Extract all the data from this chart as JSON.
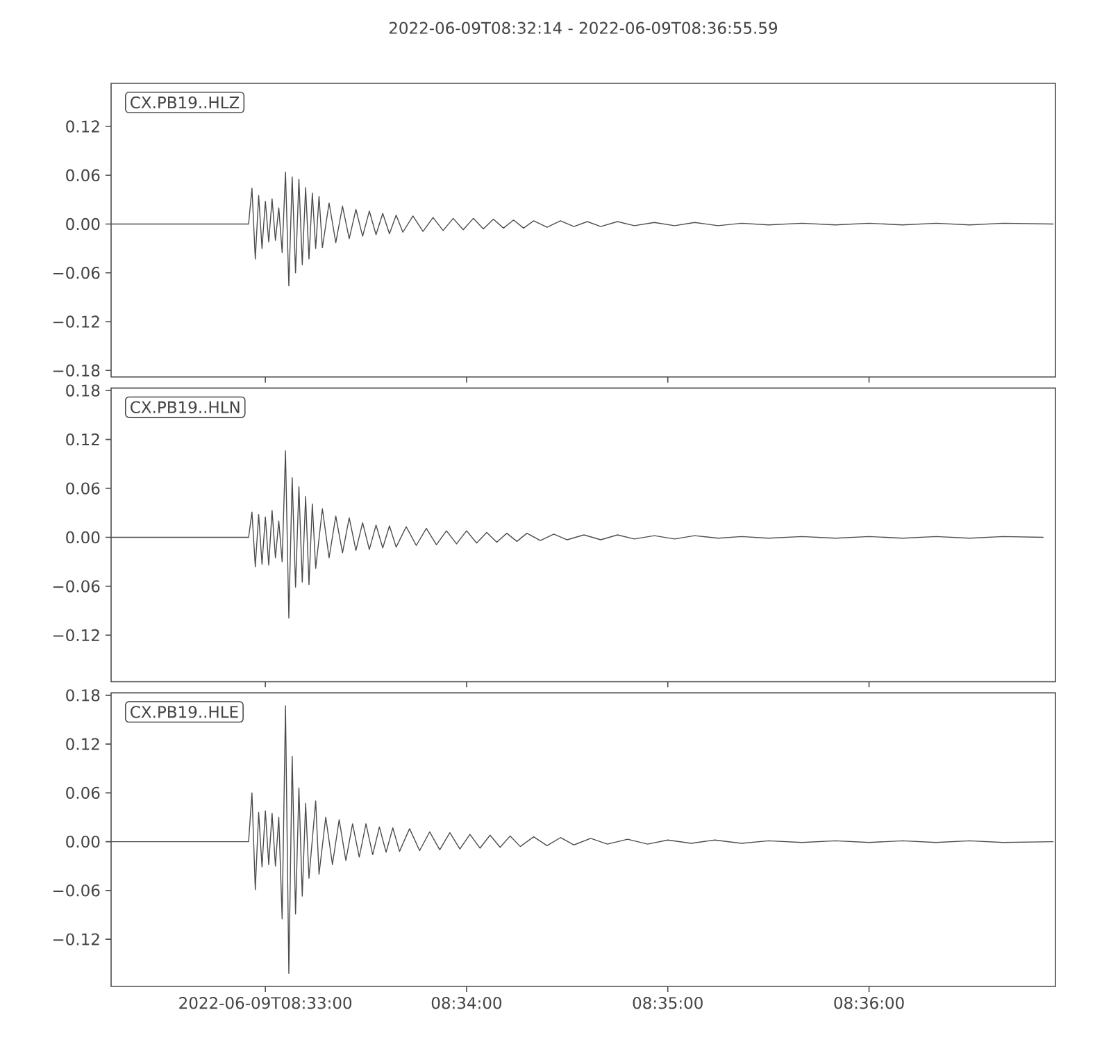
{
  "chart_data": [
    {
      "type": "line",
      "title": "2022-06-09T08:32:14  -  2022-06-09T08:36:55.59",
      "annotations": [
        "CX.PB19..HLZ"
      ],
      "color": "#4c4c4c",
      "x": [
        "2022-06-09T08:32:14",
        "2022-06-09T08:32:55",
        "2022-06-09T08:32:56",
        "2022-06-09T08:32:57",
        "2022-06-09T08:32:58",
        "2022-06-09T08:32:59",
        "2022-06-09T08:33:00",
        "2022-06-09T08:33:01",
        "2022-06-09T08:33:02",
        "2022-06-09T08:33:03",
        "2022-06-09T08:33:04",
        "2022-06-09T08:33:05",
        "2022-06-09T08:33:06",
        "2022-06-09T08:33:07",
        "2022-06-09T08:33:08",
        "2022-06-09T08:33:09",
        "2022-06-09T08:33:10",
        "2022-06-09T08:33:11",
        "2022-06-09T08:33:12",
        "2022-06-09T08:33:13",
        "2022-06-09T08:33:14",
        "2022-06-09T08:33:15",
        "2022-06-09T08:33:16",
        "2022-06-09T08:33:17",
        "2022-06-09T08:33:19",
        "2022-06-09T08:33:21",
        "2022-06-09T08:33:23",
        "2022-06-09T08:33:25",
        "2022-06-09T08:33:27",
        "2022-06-09T08:33:29",
        "2022-06-09T08:33:31",
        "2022-06-09T08:33:33",
        "2022-06-09T08:33:35",
        "2022-06-09T08:33:37",
        "2022-06-09T08:33:39",
        "2022-06-09T08:33:41",
        "2022-06-09T08:33:44",
        "2022-06-09T08:33:47",
        "2022-06-09T08:33:50",
        "2022-06-09T08:33:53",
        "2022-06-09T08:33:56",
        "2022-06-09T08:33:59",
        "2022-06-09T08:34:02",
        "2022-06-09T08:34:05",
        "2022-06-09T08:34:08",
        "2022-06-09T08:34:11",
        "2022-06-09T08:34:14",
        "2022-06-09T08:34:17",
        "2022-06-09T08:34:20",
        "2022-06-09T08:34:24",
        "2022-06-09T08:34:28",
        "2022-06-09T08:34:32",
        "2022-06-09T08:34:36",
        "2022-06-09T08:34:40",
        "2022-06-09T08:34:45",
        "2022-06-09T08:34:50",
        "2022-06-09T08:34:56",
        "2022-06-09T08:35:02",
        "2022-06-09T08:35:08",
        "2022-06-09T08:35:15",
        "2022-06-09T08:35:22",
        "2022-06-09T08:35:30",
        "2022-06-09T08:35:40",
        "2022-06-09T08:35:50",
        "2022-06-09T08:36:00",
        "2022-06-09T08:36:10",
        "2022-06-09T08:36:20",
        "2022-06-09T08:36:30",
        "2022-06-09T08:36:40",
        "2022-06-09T08:36:55"
      ],
      "values": [
        0,
        0,
        0.044,
        -0.043,
        0.035,
        -0.03,
        0.028,
        -0.022,
        0.031,
        -0.02,
        0.02,
        -0.035,
        0.064,
        -0.076,
        0.058,
        -0.06,
        0.055,
        -0.05,
        0.045,
        -0.043,
        0.038,
        -0.03,
        0.034,
        -0.029,
        0.026,
        -0.023,
        0.022,
        -0.018,
        0.018,
        -0.015,
        0.016,
        -0.013,
        0.013,
        -0.012,
        0.011,
        -0.01,
        0.01,
        -0.009,
        0.008,
        -0.008,
        0.007,
        -0.007,
        0.007,
        -0.006,
        0.006,
        -0.005,
        0.005,
        -0.005,
        0.004,
        -0.004,
        0.004,
        -0.003,
        0.003,
        -0.003,
        0.003,
        -0.002,
        0.002,
        -0.002,
        0.002,
        -0.002,
        0.001,
        -0.001,
        0.001,
        -0.001,
        0.001,
        -0.001,
        0.001,
        -0.001,
        0.001,
        0
      ],
      "xlim": [
        "2022-06-09T08:32:14",
        "2022-06-09T08:36:55.59"
      ],
      "xticks": [
        {
          "value": "2022-06-09T08:33:00",
          "label": null
        },
        {
          "value": "2022-06-09T08:34:00",
          "label": null
        },
        {
          "value": "2022-06-09T08:35:00",
          "label": null
        },
        {
          "value": "2022-06-09T08:36:00",
          "label": null
        }
      ],
      "ylim": [
        -0.188,
        0.173
      ],
      "yticks": [
        {
          "value": -0.18,
          "label": "−0.18"
        },
        {
          "value": -0.12,
          "label": "−0.12"
        },
        {
          "value": -0.06,
          "label": "−0.06"
        },
        {
          "value": 0,
          "label": "0.00"
        },
        {
          "value": 0.06,
          "label": "0.06"
        },
        {
          "value": 0.12,
          "label": "0.12"
        }
      ],
      "tick_labels": "y"
    },
    {
      "type": "line",
      "annotations": [
        "CX.PB19..HLN"
      ],
      "color": "#4c4c4c",
      "x": [
        "2022-06-09T08:32:14",
        "2022-06-09T08:32:55",
        "2022-06-09T08:32:56",
        "2022-06-09T08:32:57",
        "2022-06-09T08:32:58",
        "2022-06-09T08:32:59",
        "2022-06-09T08:33:00",
        "2022-06-09T08:33:01",
        "2022-06-09T08:33:02",
        "2022-06-09T08:33:03",
        "2022-06-09T08:33:04",
        "2022-06-09T08:33:05",
        "2022-06-09T08:33:06",
        "2022-06-09T08:33:07",
        "2022-06-09T08:33:08",
        "2022-06-09T08:33:09",
        "2022-06-09T08:33:10",
        "2022-06-09T08:33:11",
        "2022-06-09T08:33:12",
        "2022-06-09T08:33:13",
        "2022-06-09T08:33:14",
        "2022-06-09T08:33:15",
        "2022-06-09T08:33:17",
        "2022-06-09T08:33:19",
        "2022-06-09T08:33:21",
        "2022-06-09T08:33:23",
        "2022-06-09T08:33:25",
        "2022-06-09T08:33:27",
        "2022-06-09T08:33:29",
        "2022-06-09T08:33:31",
        "2022-06-09T08:33:33",
        "2022-06-09T08:33:35",
        "2022-06-09T08:33:37",
        "2022-06-09T08:33:39",
        "2022-06-09T08:33:42",
        "2022-06-09T08:33:45",
        "2022-06-09T08:33:48",
        "2022-06-09T08:33:51",
        "2022-06-09T08:33:54",
        "2022-06-09T08:33:57",
        "2022-06-09T08:34:00",
        "2022-06-09T08:34:03",
        "2022-06-09T08:34:06",
        "2022-06-09T08:34:09",
        "2022-06-09T08:34:12",
        "2022-06-09T08:34:15",
        "2022-06-09T08:34:18",
        "2022-06-09T08:34:22",
        "2022-06-09T08:34:26",
        "2022-06-09T08:34:30",
        "2022-06-09T08:34:35",
        "2022-06-09T08:34:40",
        "2022-06-09T08:34:45",
        "2022-06-09T08:34:50",
        "2022-06-09T08:34:56",
        "2022-06-09T08:35:02",
        "2022-06-09T08:35:08",
        "2022-06-09T08:35:15",
        "2022-06-09T08:35:22",
        "2022-06-09T08:35:30",
        "2022-06-09T08:35:40",
        "2022-06-09T08:35:50",
        "2022-06-09T08:36:00",
        "2022-06-09T08:36:10",
        "2022-06-09T08:36:20",
        "2022-06-09T08:36:30",
        "2022-06-09T08:36:40",
        "2022-06-09T08:36:52"
      ],
      "values": [
        0,
        0,
        0.031,
        -0.036,
        0.028,
        -0.033,
        0.025,
        -0.034,
        0.033,
        -0.025,
        0.02,
        -0.03,
        0.106,
        -0.099,
        0.073,
        -0.061,
        0.062,
        -0.055,
        0.05,
        -0.058,
        0.041,
        -0.038,
        0.035,
        -0.025,
        0.026,
        -0.019,
        0.024,
        -0.016,
        0.018,
        -0.015,
        0.015,
        -0.013,
        0.014,
        -0.012,
        0.013,
        -0.01,
        0.011,
        -0.009,
        0.008,
        -0.008,
        0.008,
        -0.007,
        0.006,
        -0.006,
        0.005,
        -0.005,
        0.005,
        -0.004,
        0.004,
        -0.003,
        0.003,
        -0.003,
        0.003,
        -0.002,
        0.002,
        -0.002,
        0.002,
        -0.001,
        0.001,
        -0.001,
        0.001,
        -0.001,
        0.001,
        -0.001,
        0.001,
        -0.001,
        0.001,
        0
      ],
      "xlim": [
        "2022-06-09T08:32:14",
        "2022-06-09T08:36:55.59"
      ],
      "xticks": [
        {
          "value": "2022-06-09T08:33:00",
          "label": null
        },
        {
          "value": "2022-06-09T08:34:00",
          "label": null
        },
        {
          "value": "2022-06-09T08:35:00",
          "label": null
        },
        {
          "value": "2022-06-09T08:36:00",
          "label": null
        }
      ],
      "ylim": [
        -0.177,
        0.183
      ],
      "yticks": [
        {
          "value": -0.12,
          "label": "−0.12"
        },
        {
          "value": -0.06,
          "label": "−0.06"
        },
        {
          "value": 0,
          "label": "0.00"
        },
        {
          "value": 0.06,
          "label": "0.06"
        },
        {
          "value": 0.12,
          "label": "0.12"
        },
        {
          "value": 0.18,
          "label": "0.18"
        }
      ],
      "tick_labels": "y"
    },
    {
      "type": "line",
      "annotations": [
        "CX.PB19..HLE"
      ],
      "color": "#4c4c4c",
      "x": [
        "2022-06-09T08:32:14",
        "2022-06-09T08:32:55",
        "2022-06-09T08:32:56",
        "2022-06-09T08:32:57",
        "2022-06-09T08:32:58",
        "2022-06-09T08:32:59",
        "2022-06-09T08:33:00",
        "2022-06-09T08:33:01",
        "2022-06-09T08:33:02",
        "2022-06-09T08:33:03",
        "2022-06-09T08:33:04",
        "2022-06-09T08:33:05",
        "2022-06-09T08:33:06",
        "2022-06-09T08:33:07",
        "2022-06-09T08:33:08",
        "2022-06-09T08:33:09",
        "2022-06-09T08:33:10",
        "2022-06-09T08:33:11",
        "2022-06-09T08:33:12",
        "2022-06-09T08:33:13",
        "2022-06-09T08:33:15",
        "2022-06-09T08:33:16",
        "2022-06-09T08:33:18",
        "2022-06-09T08:33:20",
        "2022-06-09T08:33:22",
        "2022-06-09T08:33:24",
        "2022-06-09T08:33:26",
        "2022-06-09T08:33:28",
        "2022-06-09T08:33:30",
        "2022-06-09T08:33:32",
        "2022-06-09T08:33:34",
        "2022-06-09T08:33:36",
        "2022-06-09T08:33:38",
        "2022-06-09T08:33:40",
        "2022-06-09T08:33:43",
        "2022-06-09T08:33:46",
        "2022-06-09T08:33:49",
        "2022-06-09T08:33:52",
        "2022-06-09T08:33:55",
        "2022-06-09T08:33:58",
        "2022-06-09T08:34:01",
        "2022-06-09T08:34:04",
        "2022-06-09T08:34:07",
        "2022-06-09T08:34:10",
        "2022-06-09T08:34:13",
        "2022-06-09T08:34:16",
        "2022-06-09T08:34:20",
        "2022-06-09T08:34:24",
        "2022-06-09T08:34:28",
        "2022-06-09T08:34:32",
        "2022-06-09T08:34:37",
        "2022-06-09T08:34:42",
        "2022-06-09T08:34:48",
        "2022-06-09T08:34:54",
        "2022-06-09T08:35:00",
        "2022-06-09T08:35:07",
        "2022-06-09T08:35:14",
        "2022-06-09T08:35:22",
        "2022-06-09T08:35:30",
        "2022-06-09T08:35:40",
        "2022-06-09T08:35:50",
        "2022-06-09T08:36:00",
        "2022-06-09T08:36:10",
        "2022-06-09T08:36:20",
        "2022-06-09T08:36:30",
        "2022-06-09T08:36:40",
        "2022-06-09T08:36:55"
      ],
      "values": [
        0,
        0,
        0.06,
        -0.059,
        0.036,
        -0.031,
        0.038,
        -0.028,
        0.035,
        -0.03,
        0.03,
        -0.095,
        0.167,
        -0.162,
        0.105,
        -0.089,
        0.066,
        -0.067,
        0.047,
        -0.045,
        0.05,
        -0.04,
        0.03,
        -0.028,
        0.027,
        -0.023,
        0.022,
        -0.019,
        0.022,
        -0.016,
        0.018,
        -0.013,
        0.017,
        -0.012,
        0.016,
        -0.011,
        0.012,
        -0.01,
        0.011,
        -0.009,
        0.009,
        -0.008,
        0.008,
        -0.007,
        0.007,
        -0.006,
        0.006,
        -0.005,
        0.005,
        -0.004,
        0.004,
        -0.003,
        0.003,
        -0.003,
        0.002,
        -0.002,
        0.002,
        -0.002,
        0.001,
        -0.001,
        0.001,
        -0.001,
        0.001,
        -0.001,
        0.001,
        -0.001,
        0
      ],
      "xlim": [
        "2022-06-09T08:32:14",
        "2022-06-09T08:36:55.59"
      ],
      "xticks": [
        {
          "value": "2022-06-09T08:33:00",
          "label": "2022-06-09T08:33:00"
        },
        {
          "value": "2022-06-09T08:34:00",
          "label": "08:34:00"
        },
        {
          "value": "2022-06-09T08:35:00",
          "label": "08:35:00"
        },
        {
          "value": "2022-06-09T08:36:00",
          "label": "08:36:00"
        }
      ],
      "ylim": [
        -0.178,
        0.183
      ],
      "yticks": [
        {
          "value": -0.12,
          "label": "−0.12"
        },
        {
          "value": -0.06,
          "label": "−0.06"
        },
        {
          "value": 0,
          "label": "0.00"
        },
        {
          "value": 0.06,
          "label": "0.06"
        },
        {
          "value": 0.12,
          "label": "0.12"
        },
        {
          "value": 0.18,
          "label": "0.18"
        }
      ]
    }
  ]
}
